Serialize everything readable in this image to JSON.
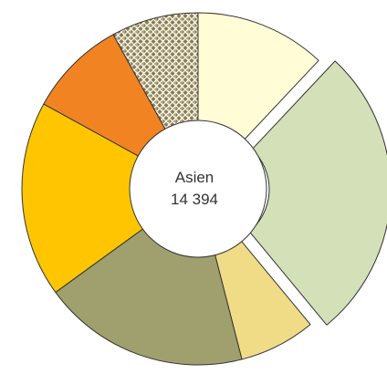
{
  "chart_data": {
    "type": "pie",
    "variant": "donut",
    "center_label": "Asien",
    "center_value": "14 394",
    "series": [
      {
        "color": "#FFFCD6",
        "value": 12,
        "exploded": false,
        "pattern": false
      },
      {
        "color": "#D3E0B8",
        "value": 27,
        "exploded": true,
        "pattern": false
      },
      {
        "color": "#F0DB87",
        "value": 7,
        "exploded": false,
        "pattern": false
      },
      {
        "color": "#A09F6E",
        "value": 19,
        "exploded": false,
        "pattern": false
      },
      {
        "color": "#FFC600",
        "value": 18,
        "exploded": false,
        "pattern": false
      },
      {
        "color": "#F28322",
        "value": 9,
        "exploded": false,
        "pattern": false
      },
      {
        "color": "#8B7D4A",
        "value": 8,
        "exploded": false,
        "pattern": true
      }
    ],
    "colors": {
      "stroke": "#333333",
      "hole": "#ffffff",
      "pattern_line": "#ffffff"
    }
  }
}
